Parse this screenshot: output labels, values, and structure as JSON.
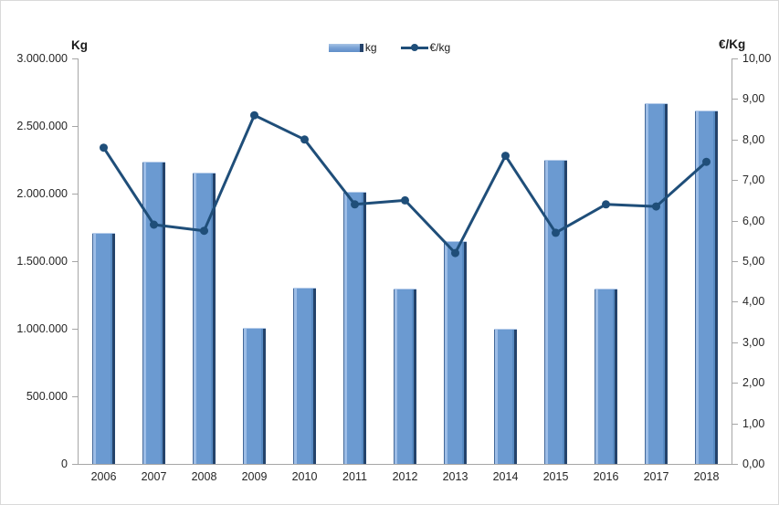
{
  "chart_data": {
    "type": "bar",
    "subtype": "combo-bar-line",
    "title": "",
    "categories": [
      "2006",
      "2007",
      "2008",
      "2009",
      "2010",
      "2011",
      "2012",
      "2013",
      "2014",
      "2015",
      "2016",
      "2017",
      "2018"
    ],
    "series": [
      {
        "name": "kg",
        "type": "bar",
        "axis": "left",
        "values": [
          1700000,
          2230000,
          2150000,
          1000000,
          1300000,
          2010000,
          1290000,
          1640000,
          990000,
          2240000,
          1290000,
          2660000,
          2610000
        ],
        "color": "#6b9ad1",
        "edge_color": "#24436b"
      },
      {
        "name": "€/kg",
        "type": "line",
        "axis": "right",
        "values": [
          7.8,
          5.9,
          5.75,
          8.6,
          8.0,
          6.4,
          6.5,
          5.2,
          7.6,
          5.7,
          6.4,
          6.35,
          7.45
        ],
        "color": "#1f4e79",
        "marker": "circle"
      }
    ],
    "left_axis": {
      "title": "Kg",
      "min": 0,
      "max": 3000000,
      "tick_interval": 500000,
      "tick_labels": [
        "3.000.000",
        "2.500.000",
        "2.000.000",
        "1.500.000",
        "1.000.000",
        "500.000",
        "0"
      ]
    },
    "right_axis": {
      "title": "€/Kg",
      "min": 0,
      "max": 10,
      "tick_interval": 1,
      "tick_labels": [
        "10,00",
        "9,00",
        "8,00",
        "7,00",
        "6,00",
        "5,00",
        "4,00",
        "3,00",
        "2,00",
        "1,00",
        "0,00"
      ]
    },
    "legend": {
      "position": "top-center",
      "entries": [
        {
          "label": "kg",
          "swatch": "bar"
        },
        {
          "label": "€/kg",
          "swatch": "line-marker"
        }
      ]
    },
    "grid": false,
    "axis_line_color": "#a6a6a6"
  }
}
